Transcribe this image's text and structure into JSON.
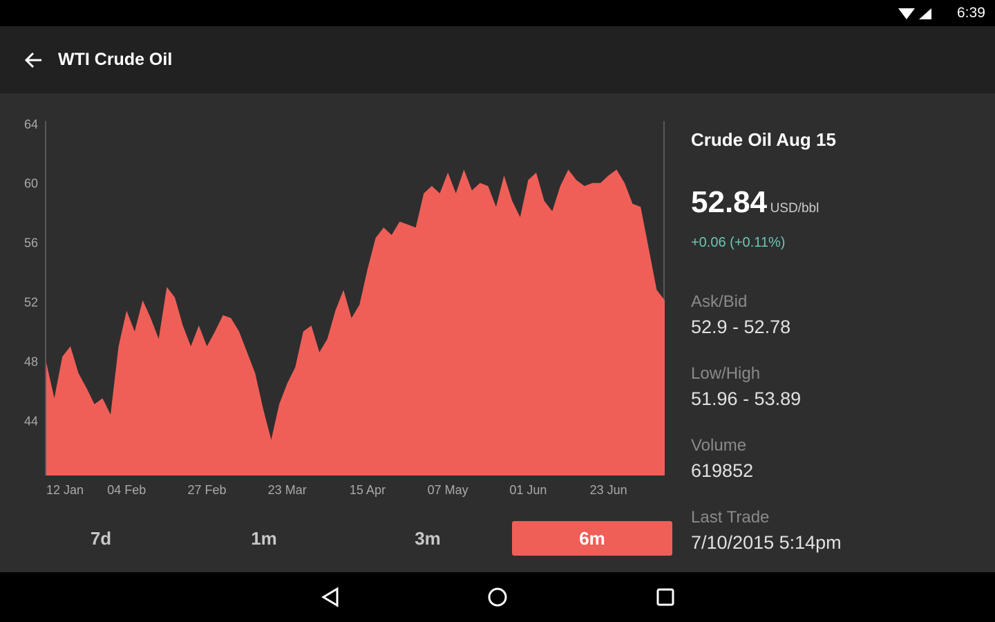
{
  "status_bar": {
    "time": "6:39"
  },
  "app_bar": {
    "title": "WTI Crude Oil"
  },
  "chart_data": {
    "type": "area",
    "categories": [
      "12 Jan",
      null,
      null,
      null,
      null,
      null,
      null,
      null,
      null,
      null,
      "04 Feb",
      null,
      null,
      null,
      null,
      null,
      null,
      null,
      null,
      null,
      "27 Feb",
      null,
      null,
      null,
      null,
      null,
      null,
      null,
      null,
      null,
      "23 Mar",
      null,
      null,
      null,
      null,
      null,
      null,
      null,
      null,
      null,
      "15 Apr",
      null,
      null,
      null,
      null,
      null,
      null,
      null,
      null,
      null,
      "07 May",
      null,
      null,
      null,
      null,
      null,
      null,
      null,
      null,
      null,
      "01 Jun",
      null,
      null,
      null,
      null,
      null,
      null,
      null,
      null,
      null,
      "23 Jun",
      null,
      null,
      null,
      null,
      null,
      null,
      null
    ],
    "series": [
      {
        "color": "#ef5f58",
        "values": [
          48.0,
          45.6,
          48.4,
          49.1,
          47.3,
          46.3,
          45.2,
          45.6,
          44.5,
          49.1,
          51.5,
          50.1,
          52.2,
          51.0,
          49.6,
          53.1,
          52.4,
          50.5,
          49.1,
          50.5,
          49.1,
          50.1,
          51.2,
          51.0,
          50.1,
          48.7,
          47.3,
          44.9,
          42.8,
          45.2,
          46.6,
          47.7,
          50.1,
          50.5,
          48.7,
          49.6,
          51.5,
          52.9,
          51.0,
          51.9,
          54.3,
          56.4,
          57.1,
          56.6,
          57.5,
          57.3,
          57.1,
          59.4,
          59.9,
          59.4,
          60.8,
          59.4,
          61.0,
          59.6,
          60.1,
          59.9,
          58.5,
          60.6,
          58.9,
          57.8,
          60.3,
          60.8,
          58.9,
          58.2,
          59.9,
          61.0,
          60.3,
          59.9,
          60.1,
          60.1,
          60.6,
          61.0,
          60.1,
          58.7,
          58.5,
          55.7,
          52.9,
          52.2
        ]
      }
    ],
    "ylim": [
      40.4,
      64
    ],
    "yticks": [
      44,
      48,
      52,
      56,
      60,
      64
    ],
    "grid": false
  },
  "tabs": [
    "7d",
    "1m",
    "3m",
    "6m"
  ],
  "quote": {
    "title": "Crude Oil Aug 15",
    "price": "52.84",
    "unit": "USD/bbl",
    "change": "+0.06 (+0.11%)",
    "stats": [
      {
        "label": "Ask/Bid",
        "value": "52.9 - 52.78"
      },
      {
        "label": "Low/High",
        "value": "51.96 - 53.89"
      },
      {
        "label": "Volume",
        "value": "619852"
      },
      {
        "label": "Last Trade",
        "value": "7/10/2015 5:14pm"
      }
    ]
  }
}
